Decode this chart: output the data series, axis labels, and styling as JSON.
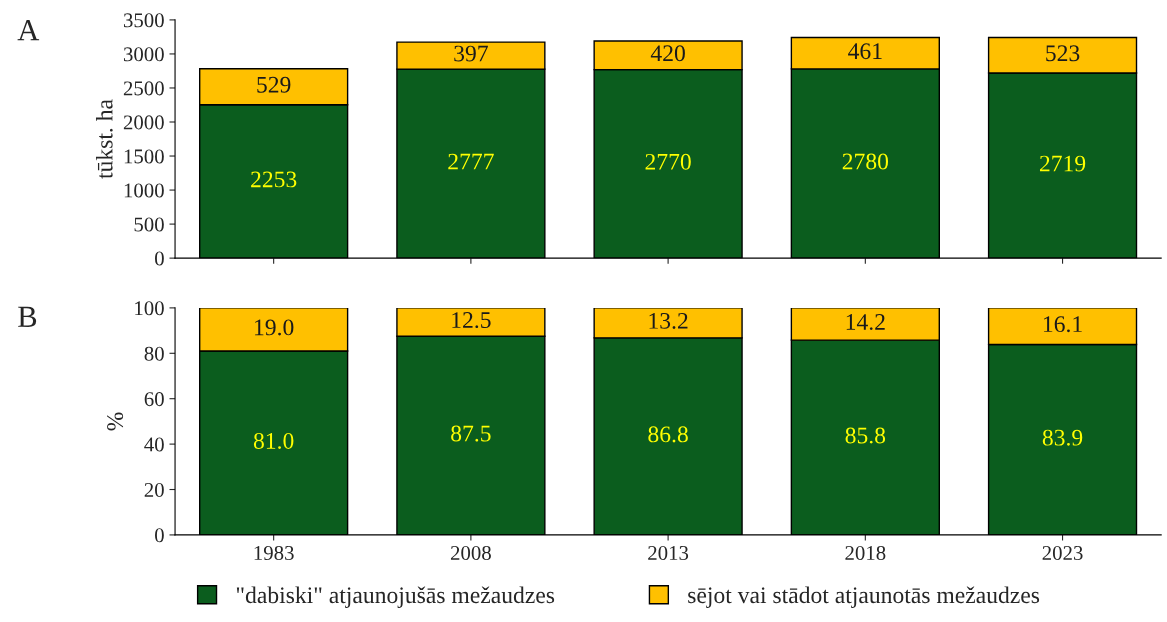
{
  "chart_data": [
    {
      "type": "bar",
      "title": "A",
      "ylabel": "tūkst. ha",
      "categories": [
        "1983",
        "2008",
        "2013",
        "2018",
        "2023"
      ],
      "stacked": true,
      "data_labels": true,
      "ylim": [
        0,
        3500
      ],
      "yticks": [
        0,
        500,
        1000,
        1500,
        2000,
        2500,
        3000,
        3500
      ],
      "tick_labels": "y",
      "grid": false,
      "series": [
        {
          "color": "#0b5d1e",
          "values": [
            2253,
            2777,
            2770,
            2780,
            2719
          ]
        },
        {
          "color": "#ffc000",
          "values": [
            529,
            397,
            420,
            461,
            523
          ]
        }
      ]
    },
    {
      "type": "bar",
      "title": "B",
      "ylabel": "%",
      "categories": [
        "1983",
        "2008",
        "2013",
        "2018",
        "2023"
      ],
      "stacked": true,
      "ylim": [
        0,
        100
      ],
      "yticks": [
        0,
        20,
        40,
        60,
        80,
        100
      ],
      "grid": false,
      "legend": "bottom",
      "series": [
        {
          "name": "\"dabiski\" atjaunojušās mežaudzes",
          "color": "#0b5d1e",
          "values": [
            81.0,
            87.5,
            86.8,
            85.8,
            83.9
          ],
          "value_labels": [
            "81.0",
            "87.5",
            "86.8",
            "85.8",
            "83.9"
          ]
        },
        {
          "name": "sējot vai stādot atjaunotās mežaudzes",
          "color": "#ffc000",
          "values": [
            19.0,
            12.5,
            13.2,
            14.2,
            16.1
          ],
          "value_labels": [
            "19.0",
            "12.5",
            "13.2",
            "14.2",
            "16.1"
          ]
        }
      ]
    }
  ]
}
